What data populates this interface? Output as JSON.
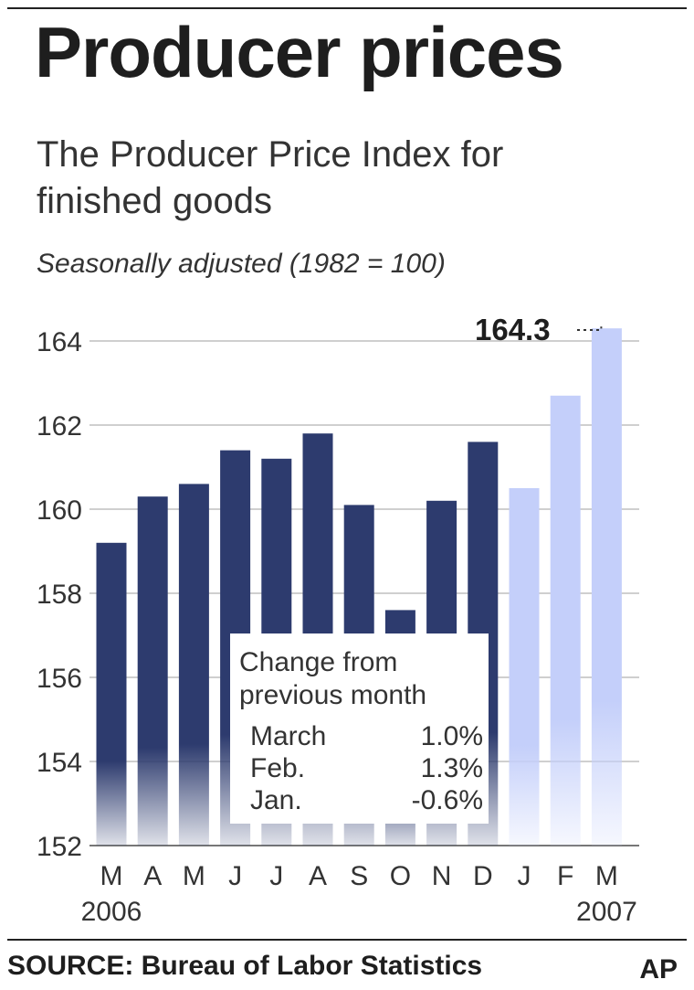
{
  "title": "Producer prices",
  "subtitle": "The Producer Price Index for finished goods",
  "note": "Seasonally adjusted  (1982 = 100)",
  "source": "SOURCE: Bureau of Labor Statistics",
  "credit": "AP",
  "inset": {
    "heading": "Change from previous month",
    "rows": [
      {
        "label": "March",
        "value": "1.0%"
      },
      {
        "label": "Feb.",
        "value": "1.3%"
      },
      {
        "label": "Jan.",
        "value": "-0.6%"
      }
    ]
  },
  "chart_data": {
    "type": "bar",
    "title": "Producer prices",
    "categories": [
      "M",
      "A",
      "M",
      "J",
      "J",
      "A",
      "S",
      "O",
      "N",
      "D",
      "J",
      "F",
      "M"
    ],
    "year_labels": [
      {
        "index": 0,
        "text": "2006"
      },
      {
        "index": 12,
        "text": "2007"
      }
    ],
    "values": [
      159.2,
      160.3,
      160.6,
      161.4,
      161.2,
      161.8,
      160.1,
      157.6,
      160.2,
      161.6,
      160.5,
      162.7,
      164.3
    ],
    "highlight_from_index": 10,
    "colors": {
      "base": "#2d3b6e",
      "highlight": "#c4cffa"
    },
    "yticks": [
      152,
      154,
      156,
      158,
      160,
      162,
      164
    ],
    "ylim": [
      152,
      165
    ],
    "grid": true,
    "annotation": {
      "index": 12,
      "text": "164.3"
    }
  }
}
